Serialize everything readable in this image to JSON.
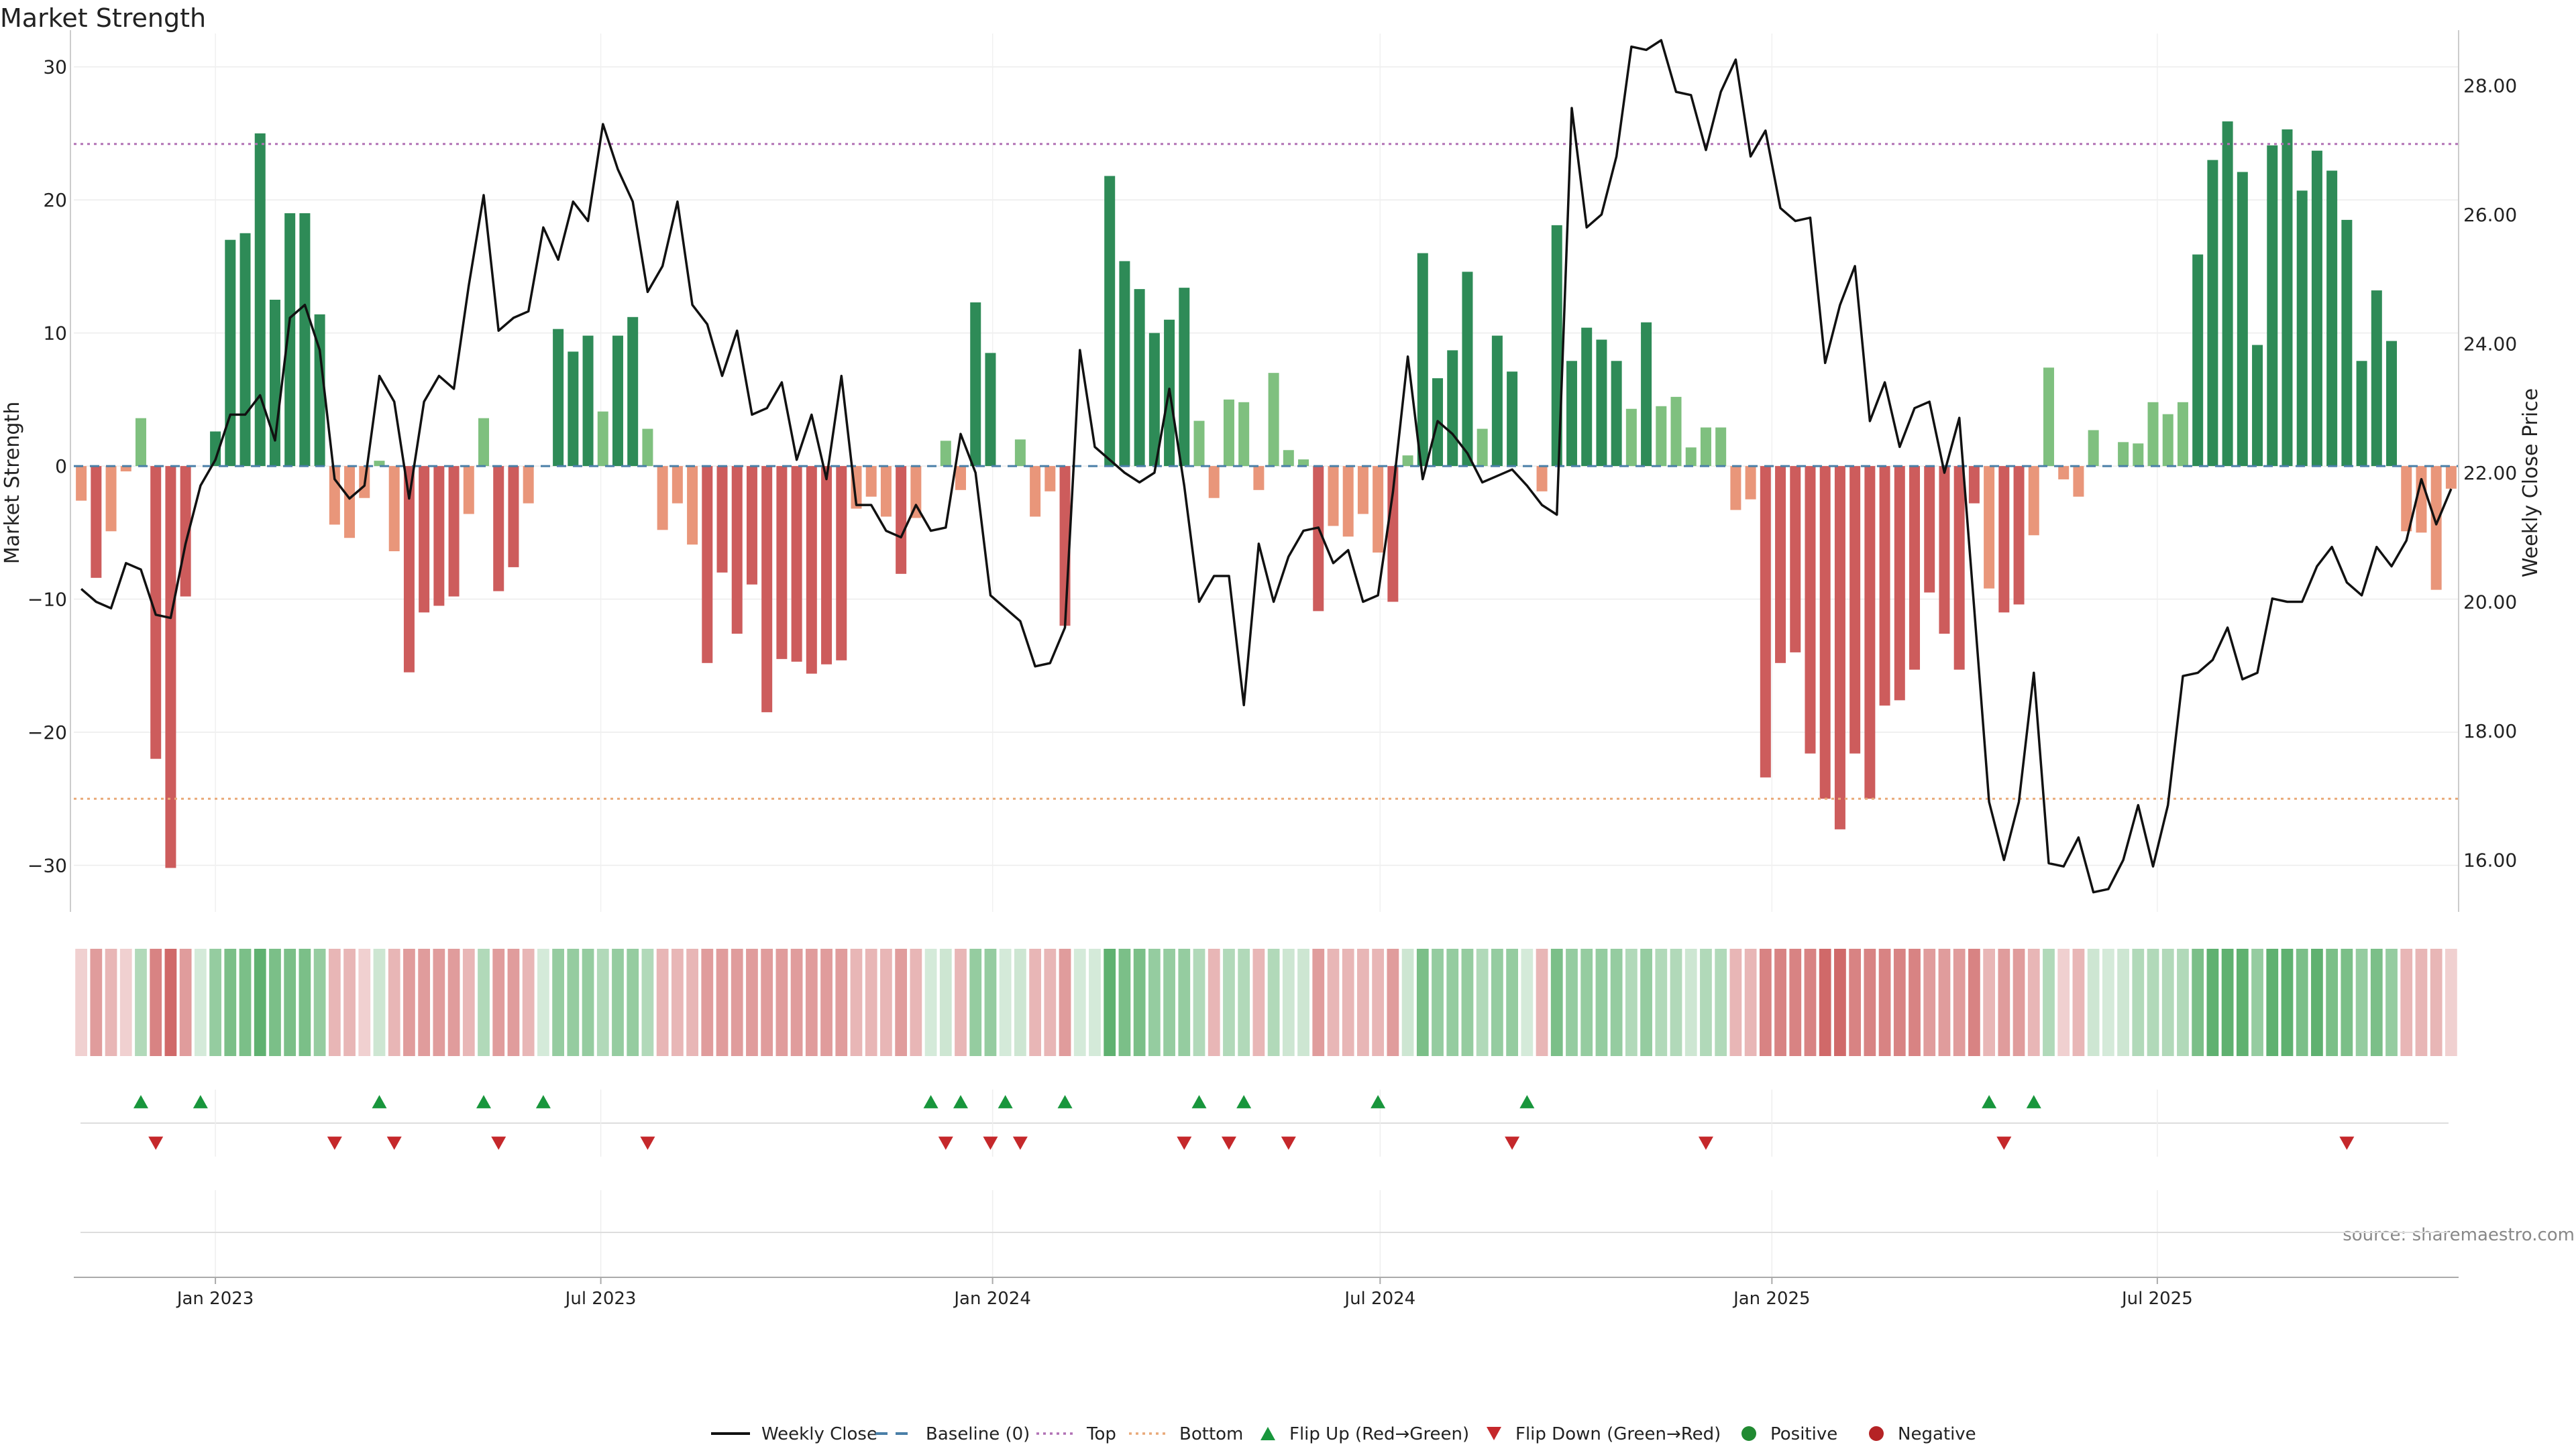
{
  "chart_data": {
    "type": "bar",
    "title": "Market Strength",
    "ylabel": "Market Strength",
    "y2label": "Weekly Close Price",
    "source": "source: sharemaestro.com",
    "ylim": [
      -33,
      32
    ],
    "y2lim": [
      15.3,
      28.7
    ],
    "y_ticks": [
      30,
      20,
      10,
      0,
      -10,
      -20,
      -30
    ],
    "y_tick_labels": [
      "30",
      "20",
      "10",
      "0",
      "−10",
      "−20",
      "−30"
    ],
    "y2_ticks": [
      28,
      26,
      24,
      22,
      20,
      18,
      16
    ],
    "y2_tick_labels": [
      "28.00",
      "26.00",
      "24.00",
      "22.00",
      "20.00",
      "18.00",
      "16.00"
    ],
    "x_ticks": [
      {
        "date": "2023-01-01",
        "label": "Jan 2023"
      },
      {
        "date": "2023-07-01",
        "label": "Jul 2023"
      },
      {
        "date": "2024-01-01",
        "label": "Jan 2024"
      },
      {
        "date": "2024-07-01",
        "label": "Jul 2024"
      },
      {
        "date": "2025-01-01",
        "label": "Jan 2025"
      },
      {
        "date": "2025-07-01",
        "label": "Jul 2025"
      }
    ],
    "top_line": 24.2,
    "bottom_line": -25,
    "first_week": "2022-10-30",
    "strength": [
      -2.6,
      -8.4,
      -4.9,
      -0.4,
      3.6,
      -22,
      -30.2,
      -9.8,
      0,
      2.6,
      17,
      17.5,
      25,
      12.5,
      19,
      19,
      11.4,
      -4.4,
      -5.4,
      -2.4,
      0.4,
      -6.4,
      -15.5,
      -11,
      -10.5,
      -9.8,
      -3.6,
      3.6,
      -9.4,
      -7.6,
      -2.8,
      0,
      10.3,
      8.6,
      9.8,
      4.1,
      9.8,
      11.2,
      2.8,
      -4.8,
      -2.8,
      -5.9,
      -14.8,
      -8,
      -12.6,
      -8.9,
      -18.5,
      -14.5,
      -14.7,
      -15.6,
      -14.9,
      -14.6,
      -3.2,
      -2.3,
      -3.8,
      -8.1,
      -3.9,
      0,
      1.9,
      -1.8,
      12.3,
      8.5,
      0,
      2,
      -3.8,
      -1.9,
      -12,
      0,
      0,
      21.8,
      15.4,
      13.3,
      10,
      11,
      13.4,
      3.4,
      -2.4,
      5,
      4.8,
      -1.8,
      7,
      1.2,
      0.5,
      -10.9,
      -4.5,
      -5.3,
      -3.6,
      -6.5,
      -10.2,
      0.8,
      16,
      6.6,
      8.7,
      14.6,
      2.8,
      9.8,
      7.1,
      0,
      -1.9,
      18.1,
      7.9,
      10.4,
      9.5,
      7.9,
      4.3,
      10.8,
      4.5,
      5.2,
      1.4,
      2.9,
      2.9,
      -3.3,
      -2.5,
      -23.4,
      -14.8,
      -14,
      -21.6,
      -25,
      -27.3,
      -21.6,
      -25,
      -18,
      -17.6,
      -15.3,
      -9.5,
      -12.6,
      -15.3,
      -2.8,
      -9.2,
      -11,
      -10.4,
      -5.2,
      7.4,
      -1,
      -2.3,
      2.7,
      0,
      1.8,
      1.7,
      4.8,
      3.9,
      4.8,
      15.9,
      23,
      25.9,
      22.1,
      9.1,
      24.1,
      25.3,
      20.7,
      23.7,
      22.2,
      18.5,
      7.9,
      13.2,
      9.4,
      -4.9,
      -5,
      -9.3,
      -1.7
    ],
    "intensity": [
      1,
      3,
      2,
      1,
      2,
      4,
      5,
      3,
      1,
      3,
      4,
      4,
      5,
      4,
      4,
      4,
      3,
      2,
      2,
      1,
      1,
      2,
      3,
      3,
      3,
      3,
      2,
      2,
      3,
      3,
      2,
      1,
      3,
      3,
      3,
      2,
      3,
      3,
      2,
      2,
      2,
      2,
      3,
      3,
      3,
      3,
      3,
      3,
      3,
      3,
      3,
      3,
      2,
      2,
      2,
      3,
      2,
      1,
      1,
      2,
      3,
      3,
      1,
      1,
      2,
      2,
      3,
      1,
      1,
      5,
      4,
      4,
      3,
      3,
      3,
      2,
      2,
      2,
      2,
      2,
      2,
      1,
      1,
      3,
      2,
      2,
      2,
      2,
      3,
      1,
      4,
      3,
      3,
      3,
      2,
      3,
      3,
      1,
      2,
      4,
      3,
      3,
      3,
      3,
      2,
      3,
      2,
      2,
      1,
      2,
      2,
      2,
      2,
      4,
      4,
      4,
      4,
      5,
      5,
      4,
      4,
      4,
      4,
      4,
      3,
      3,
      3,
      4,
      2,
      3,
      3,
      2,
      2,
      1,
      2,
      1,
      1,
      1,
      2,
      2,
      2,
      2,
      4,
      5,
      5,
      5,
      3,
      5,
      5,
      4,
      5,
      4,
      4,
      3,
      4,
      3,
      2,
      2,
      2,
      1
    ],
    "price": [
      20.2,
      20.0,
      19.9,
      20.6,
      20.5,
      19.8,
      19.75,
      20.9,
      21.8,
      22.2,
      22.9,
      22.9,
      23.2,
      22.5,
      24.4,
      24.6,
      23.9,
      21.9,
      21.6,
      21.8,
      23.5,
      23.1,
      21.6,
      23.1,
      23.5,
      23.3,
      24.9,
      26.3,
      24.2,
      24.4,
      24.5,
      25.8,
      25.3,
      26.2,
      25.9,
      27.4,
      26.7,
      26.2,
      24.8,
      25.2,
      26.2,
      24.6,
      24.3,
      23.5,
      24.2,
      22.9,
      23.0,
      23.4,
      22.2,
      22.9,
      21.9,
      23.5,
      21.5,
      21.5,
      21.1,
      21.0,
      21.5,
      21.1,
      21.15,
      22.6,
      22.0,
      20.1,
      19.9,
      19.7,
      19.0,
      19.05,
      19.6,
      23.9,
      22.4,
      22.2,
      22.0,
      21.85,
      22.0,
      23.3,
      21.8,
      20.0,
      20.4,
      20.4,
      18.4,
      20.9,
      20.0,
      20.7,
      21.1,
      21.15,
      20.6,
      20.8,
      20.0,
      20.1,
      21.7,
      23.8,
      21.9,
      22.8,
      22.6,
      22.3,
      21.85,
      21.95,
      22.05,
      21.8,
      21.5,
      21.35,
      27.65,
      25.8,
      26.0,
      26.9,
      28.6,
      28.55,
      28.7,
      27.9,
      27.85,
      27.0,
      27.9,
      28.4,
      26.9,
      27.3,
      26.1,
      25.9,
      25.95,
      23.7,
      24.6,
      25.2,
      22.8,
      23.4,
      22.4,
      23.0,
      23.1,
      22.0,
      22.85,
      19.9,
      16.9,
      16.0,
      16.9,
      18.9,
      15.95,
      15.9,
      16.35,
      15.5,
      15.55,
      16.0,
      16.85,
      15.9,
      16.85,
      18.85,
      18.9,
      19.1,
      19.6,
      18.8,
      18.9,
      20.05,
      20.0,
      20.0,
      20.55,
      20.85,
      20.3,
      20.1,
      20.85,
      20.55,
      20.95,
      21.9,
      21.2,
      21.75
    ],
    "flip_up_weeks": [
      4,
      8,
      20,
      27,
      31,
      57,
      59,
      62,
      66,
      75,
      78,
      87,
      97,
      128,
      131
    ],
    "flip_down_weeks": [
      5,
      17,
      21,
      28,
      38,
      58,
      61,
      63,
      74,
      77,
      81,
      96,
      109,
      129,
      152
    ],
    "legend": [
      {
        "label": "Weekly Close",
        "marker": "line",
        "color": "#111111"
      },
      {
        "label": "Baseline (0)",
        "marker": "dash",
        "color": "#4a7fa8"
      },
      {
        "label": "Top",
        "marker": "dot-line",
        "color": "#b272b5"
      },
      {
        "label": "Bottom",
        "marker": "dot-line",
        "color": "#e9a978"
      },
      {
        "label": "Flip Up (Red→Green)",
        "marker": "triangle-up",
        "color": "#18963c"
      },
      {
        "label": "Flip Down (Green→Red)",
        "marker": "triangle-down",
        "color": "#c5282b"
      },
      {
        "label": "Positive",
        "marker": "circle",
        "color": "#218a32"
      },
      {
        "label": "Negative",
        "marker": "circle",
        "color": "#b52325"
      }
    ],
    "colors": {
      "strong_positive": "#2e8b57",
      "weak_positive": "#7fc07f",
      "strong_negative": "#cd5c5c",
      "weak_negative": "#e9967a",
      "price_line": "#111111",
      "top_line": "#b272b5",
      "bottom_line": "#e9a978",
      "baseline": "#4a7fa8",
      "flip_up": "#18963c",
      "flip_down": "#c5282b"
    }
  }
}
